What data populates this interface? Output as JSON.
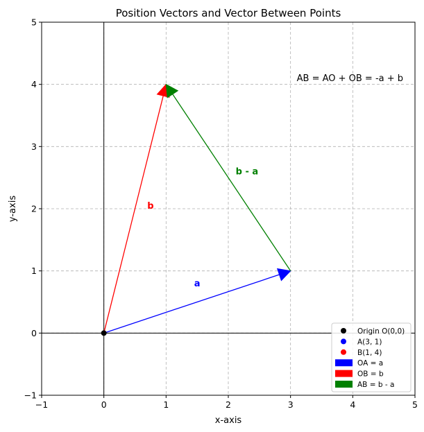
{
  "chart_data": {
    "type": "vector-plot",
    "title": "Position Vectors and Vector Between Points",
    "xlabel": "x-axis",
    "ylabel": "y-axis",
    "xlim": [
      -1,
      5
    ],
    "ylim": [
      -1,
      5
    ],
    "xticks": [
      -1,
      0,
      1,
      2,
      3,
      4,
      5
    ],
    "yticks": [
      -1,
      0,
      1,
      2,
      3,
      4,
      5
    ],
    "grid": true,
    "points": [
      {
        "label": "Origin O(0,0)",
        "x": 0,
        "y": 0,
        "color": "#000000"
      },
      {
        "label": "A(3, 1)",
        "x": 3,
        "y": 1,
        "color": "#0000ff"
      },
      {
        "label": "B(1, 4)",
        "x": 1,
        "y": 4,
        "color": "#ff0000"
      }
    ],
    "vectors": [
      {
        "legend": "OA = a",
        "from": [
          0,
          0
        ],
        "to": [
          3,
          1
        ],
        "color": "#0000ff",
        "label": "a",
        "label_at": [
          1.5,
          0.8
        ]
      },
      {
        "legend": "OB = b",
        "from": [
          0,
          0
        ],
        "to": [
          1,
          4
        ],
        "color": "#ff0000",
        "label": "b",
        "label_at": [
          0.75,
          2.05
        ]
      },
      {
        "legend": "AB = b - a",
        "from": [
          3,
          1
        ],
        "to": [
          1,
          4
        ],
        "color": "#008000",
        "label": "b - a",
        "label_at": [
          2.3,
          2.6
        ]
      }
    ],
    "annotation": {
      "text": "AB = AO + OB = -a + b",
      "at": [
        3.1,
        4.1
      ]
    },
    "legend_position": "bottom-right"
  }
}
